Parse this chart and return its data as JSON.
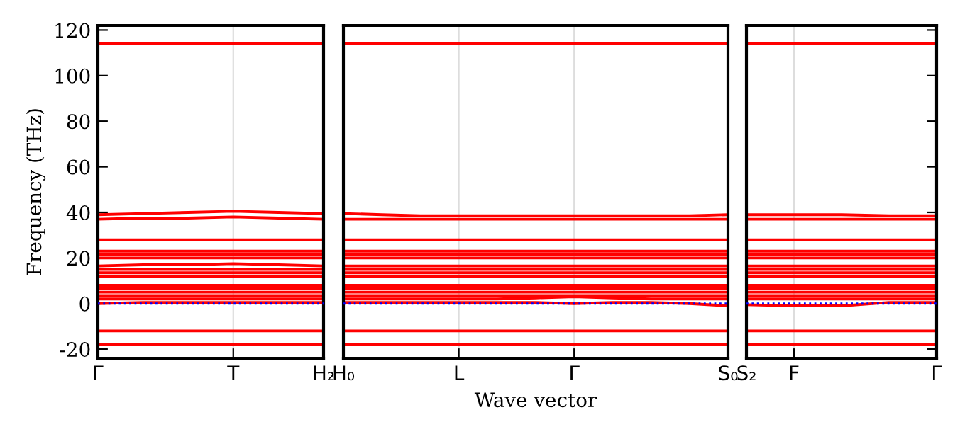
{
  "chart_data": [
    {
      "type": "line",
      "ylabel": "Frequency (THz)",
      "categories": [
        "Γ",
        null,
        null,
        "T",
        null,
        "H₂"
      ],
      "ylim": [
        -24,
        122
      ],
      "yticks": [
        -20,
        0,
        20,
        40,
        60,
        80,
        100,
        120
      ],
      "grid": "x",
      "line_style": "solid",
      "series": [
        {
          "color": "#ff0000",
          "values": [
            114,
            114,
            114,
            114,
            114,
            114
          ]
        },
        {
          "color": "#ff0000",
          "values": [
            39,
            39.5,
            40,
            40.5,
            40,
            39.5
          ]
        },
        {
          "color": "#ff0000",
          "values": [
            37,
            37.5,
            37.5,
            38,
            37.5,
            37
          ]
        },
        {
          "color": "#ff0000",
          "values": [
            28,
            28,
            28,
            28,
            28,
            28
          ]
        },
        {
          "color": "#ff0000",
          "values": [
            23,
            23,
            23,
            23,
            23,
            23
          ]
        },
        {
          "color": "#ff0000",
          "values": [
            21.5,
            21.5,
            21.5,
            21.5,
            21.5,
            21.5
          ]
        },
        {
          "color": "#ff0000",
          "values": [
            20,
            20,
            20,
            20,
            20,
            20
          ]
        },
        {
          "color": "#ff0000",
          "values": [
            16.5,
            17,
            17,
            17.5,
            17,
            16.5
          ]
        },
        {
          "color": "#ff0000",
          "values": [
            15,
            15,
            15,
            15,
            15,
            15
          ]
        },
        {
          "color": "#ff0000",
          "values": [
            13.5,
            13.5,
            13.5,
            13.5,
            13.5,
            13.5
          ]
        },
        {
          "color": "#ff0000",
          "values": [
            12,
            12,
            12,
            12,
            12,
            12
          ]
        },
        {
          "color": "#ff0000",
          "values": [
            8,
            8,
            8,
            8,
            8,
            8
          ]
        },
        {
          "color": "#ff0000",
          "values": [
            6.5,
            6.5,
            6.5,
            6.5,
            6.5,
            6.5
          ]
        },
        {
          "color": "#ff0000",
          "values": [
            5,
            5,
            5,
            5,
            5,
            5
          ]
        },
        {
          "color": "#ff0000",
          "values": [
            3.5,
            3.5,
            3.5,
            3.5,
            3.5,
            3.5
          ]
        },
        {
          "color": "#ff0000",
          "values": [
            2,
            2,
            2,
            2,
            2,
            2
          ]
        },
        {
          "color": "#ff0000",
          "values": [
            0,
            0.5,
            0.5,
            0.5,
            0.5,
            0.5
          ]
        },
        {
          "color": "#ff0000",
          "values": [
            -12,
            -12,
            -12,
            -12,
            -12,
            -12
          ]
        },
        {
          "color": "#ff0000",
          "values": [
            -18,
            -18,
            -18,
            -18,
            -18,
            -18
          ]
        },
        {
          "color": "#0000ff",
          "line_style": "dotted",
          "values": [
            0,
            0,
            0,
            0,
            0,
            0
          ]
        }
      ]
    },
    {
      "type": "line",
      "xlabel": "Wave vector",
      "categories": [
        "H₀",
        null,
        null,
        "L",
        null,
        null,
        "Γ",
        null,
        null,
        null,
        "S₀"
      ],
      "ylim": [
        -24,
        122
      ],
      "tick_labels": "x",
      "grid": "x",
      "line_style": "solid",
      "series": [
        {
          "color": "#ff0000",
          "values": [
            114,
            114,
            114,
            114,
            114,
            114,
            114,
            114,
            114,
            114,
            114
          ]
        },
        {
          "color": "#ff0000",
          "values": [
            39.5,
            39,
            38.5,
            38.5,
            38.5,
            38.5,
            38.5,
            38.5,
            38.5,
            38.5,
            39
          ]
        },
        {
          "color": "#ff0000",
          "values": [
            37,
            37,
            37,
            37,
            37,
            37,
            37,
            37,
            37,
            37,
            37
          ]
        },
        {
          "color": "#ff0000",
          "values": [
            28,
            28,
            28,
            28,
            28,
            28,
            28,
            28,
            28,
            28,
            28
          ]
        },
        {
          "color": "#ff0000",
          "values": [
            23,
            23,
            23,
            23,
            23,
            23,
            23,
            23,
            23,
            23,
            23
          ]
        },
        {
          "color": "#ff0000",
          "values": [
            21.5,
            21.5,
            21.5,
            21.5,
            21.5,
            21.5,
            21.5,
            21.5,
            21.5,
            21.5,
            21.5
          ]
        },
        {
          "color": "#ff0000",
          "values": [
            20,
            20,
            20,
            20,
            20,
            20,
            20,
            20,
            20,
            20,
            20
          ]
        },
        {
          "color": "#ff0000",
          "values": [
            16.5,
            16.5,
            16.5,
            16.5,
            16.5,
            16.5,
            16.5,
            16.5,
            16.5,
            16.5,
            16.5
          ]
        },
        {
          "color": "#ff0000",
          "values": [
            15,
            15,
            15,
            15,
            15,
            15,
            15,
            15,
            15,
            15,
            15
          ]
        },
        {
          "color": "#ff0000",
          "values": [
            13.5,
            13.5,
            13.5,
            13.5,
            13.5,
            13.5,
            13.5,
            13.5,
            13.5,
            13.5,
            13.5
          ]
        },
        {
          "color": "#ff0000",
          "values": [
            12,
            12,
            12,
            12,
            12,
            12,
            12,
            12,
            12,
            12,
            12
          ]
        },
        {
          "color": "#ff0000",
          "values": [
            8,
            8,
            8,
            8,
            8,
            8,
            8,
            8,
            8,
            8,
            8
          ]
        },
        {
          "color": "#ff0000",
          "values": [
            6.5,
            6.5,
            6.5,
            6.5,
            6.5,
            6.5,
            6.5,
            6.5,
            6.5,
            6.5,
            6.5
          ]
        },
        {
          "color": "#ff0000",
          "values": [
            5,
            5,
            5,
            5,
            5,
            5,
            5,
            5,
            5,
            5,
            5
          ]
        },
        {
          "color": "#ff0000",
          "values": [
            3.5,
            3.5,
            3.5,
            3.5,
            3.5,
            3.5,
            3.5,
            3.5,
            3.5,
            3.5,
            3.5
          ]
        },
        {
          "color": "#ff0000",
          "values": [
            2,
            2,
            2,
            2,
            2,
            2.5,
            3,
            2.5,
            2,
            2,
            2
          ]
        },
        {
          "color": "#ff0000",
          "values": [
            0.5,
            0.5,
            0.5,
            0.5,
            0.5,
            0.5,
            0,
            0.5,
            0.5,
            0,
            -1
          ]
        },
        {
          "color": "#ff0000",
          "values": [
            -12,
            -12,
            -12,
            -12,
            -12,
            -12,
            -12,
            -12,
            -12,
            -12,
            -12
          ]
        },
        {
          "color": "#ff0000",
          "values": [
            -18,
            -18,
            -18,
            -18,
            -18,
            -18,
            -18,
            -18,
            -18,
            -18,
            -18
          ]
        },
        {
          "color": "#0000ff",
          "line_style": "dotted",
          "values": [
            0,
            0,
            0,
            0,
            0,
            0,
            0,
            0,
            0,
            0,
            0
          ]
        }
      ]
    },
    {
      "type": "line",
      "categories": [
        "S₂",
        "F",
        null,
        null,
        "Γ"
      ],
      "ylim": [
        -24,
        122
      ],
      "yticks": [
        {
          "value": -20,
          "label": null
        },
        {
          "value": 0,
          "label": null
        },
        {
          "value": 20,
          "label": null
        },
        {
          "value": 40,
          "label": null
        },
        {
          "value": 60,
          "label": null
        },
        {
          "value": 80,
          "label": null
        },
        {
          "value": 100,
          "label": null
        },
        {
          "value": 120,
          "label": null
        }
      ],
      "tick_labels": "x",
      "grid": "x",
      "line_style": "solid",
      "series": [
        {
          "color": "#ff0000",
          "values": [
            114,
            114,
            114,
            114,
            114
          ]
        },
        {
          "color": "#ff0000",
          "values": [
            39,
            39,
            39,
            38.5,
            38.5
          ]
        },
        {
          "color": "#ff0000",
          "values": [
            37,
            37,
            37,
            37,
            37
          ]
        },
        {
          "color": "#ff0000",
          "values": [
            28,
            28,
            28,
            28,
            28
          ]
        },
        {
          "color": "#ff0000",
          "values": [
            23,
            23,
            23,
            23,
            23
          ]
        },
        {
          "color": "#ff0000",
          "values": [
            21.5,
            21.5,
            21.5,
            21.5,
            21.5
          ]
        },
        {
          "color": "#ff0000",
          "values": [
            20,
            20,
            20,
            20,
            20
          ]
        },
        {
          "color": "#ff0000",
          "values": [
            16.5,
            16.5,
            16.5,
            16.5,
            16.5
          ]
        },
        {
          "color": "#ff0000",
          "values": [
            15,
            15,
            15,
            15,
            15
          ]
        },
        {
          "color": "#ff0000",
          "values": [
            13.5,
            13.5,
            13.5,
            13.5,
            13.5
          ]
        },
        {
          "color": "#ff0000",
          "values": [
            12,
            12,
            12,
            12,
            12
          ]
        },
        {
          "color": "#ff0000",
          "values": [
            8,
            8,
            8,
            8,
            8
          ]
        },
        {
          "color": "#ff0000",
          "values": [
            6.5,
            6.5,
            6.5,
            6.5,
            6.5
          ]
        },
        {
          "color": "#ff0000",
          "values": [
            5,
            5,
            5,
            5,
            5
          ]
        },
        {
          "color": "#ff0000",
          "values": [
            3.5,
            3.5,
            3.5,
            3.5,
            3.5
          ]
        },
        {
          "color": "#ff0000",
          "values": [
            2,
            2,
            2,
            2,
            2
          ]
        },
        {
          "color": "#ff0000",
          "values": [
            -0.5,
            -1,
            -1,
            0.5,
            0.5
          ]
        },
        {
          "color": "#ff0000",
          "values": [
            -12,
            -12,
            -12,
            -12,
            -12
          ]
        },
        {
          "color": "#ff0000",
          "values": [
            -18,
            -18,
            -18,
            -18,
            -18
          ]
        },
        {
          "color": "#0000ff",
          "line_style": "dotted",
          "values": [
            0,
            0,
            0,
            0,
            0
          ]
        }
      ]
    }
  ]
}
